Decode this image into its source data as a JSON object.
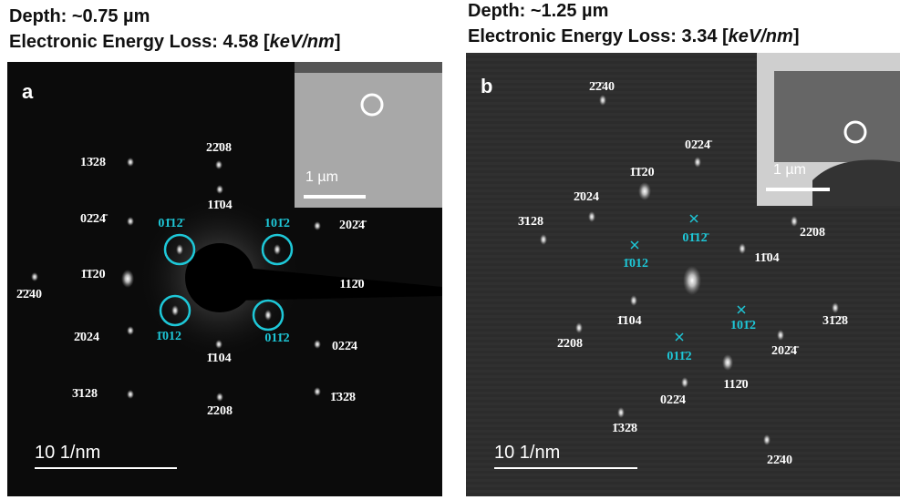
{
  "panels": [
    {
      "depth": "Depth: ~0.75 µm",
      "energy_prefix": "Electronic Energy Loss: 4.58 [",
      "energy_unit": "keV/nm",
      "energy_suffix": "]",
      "letter": "a",
      "inset_scale": "1 µm",
      "scale": "10 1/nm",
      "white_labels": [
        "13̄28",
        "22̄08",
        "11̄04",
        "02̄24̄",
        "202̄4̄",
        "1̄1̄20",
        "2̄2̄40",
        "112̄0",
        "2̄024",
        "022̄4",
        "1̄104",
        "3̄128",
        "1̄32̄8",
        "2̄208"
      ],
      "cyan_labels": [
        "01̄12̄",
        "101̄2",
        "1̄012",
        "011̄2"
      ]
    },
    {
      "depth": "Depth: ~1.25 µm",
      "energy_prefix": "Electronic Energy Loss: 3.34 [",
      "energy_unit": "keV/nm",
      "energy_suffix": "]",
      "letter": "b",
      "inset_scale": "1 µm",
      "scale": "10 1/nm",
      "white_labels": [
        "2̄2̄40",
        "02̄24̄",
        "1̄1̄20",
        "2̄024",
        "3̄128",
        "22̄08",
        "11̄04",
        "1̄104",
        "31̄2̄8",
        "2̄208",
        "202̄4̄",
        "022̄4",
        "112̄0",
        "1̄32̄8",
        "22̄40"
      ],
      "cyan_labels": [
        "01̄12̄",
        "1̄012",
        "101̄2",
        "011̄2"
      ]
    }
  ]
}
